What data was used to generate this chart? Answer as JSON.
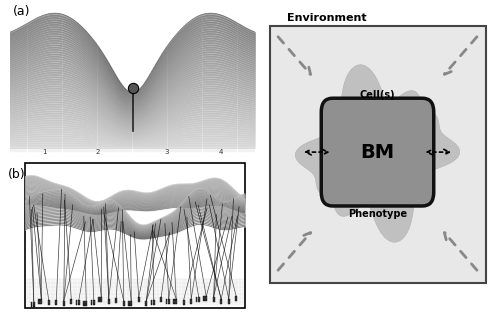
{
  "fig_width": 5.0,
  "fig_height": 3.14,
  "dpi": 100,
  "background_color": "#ffffff",
  "label_a": "(a)",
  "label_b": "(b)",
  "env_label": "Environment",
  "cell_label": "Cell(s)",
  "bm_label": "BM",
  "phenotype_label": "Phenotype",
  "arrow_gray": "#888888",
  "blob_color": "#c8c8c8",
  "box_fill": "#e8e8e8",
  "bm_fill": "#909090",
  "bm_edge": "#111111",
  "outer_edge": "#444444"
}
